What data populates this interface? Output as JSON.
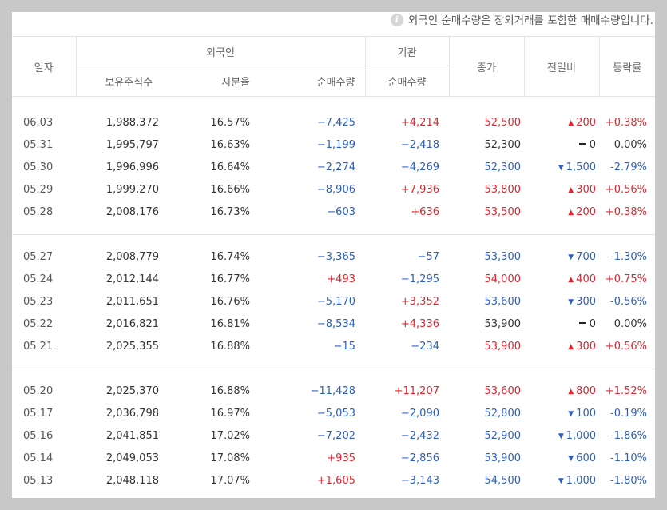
{
  "notice": "외국인 순매수량은 장외거래를 포함한 매매수량입니다.",
  "icons": {
    "info": "info-icon",
    "up": "triangle-up-icon",
    "down": "triangle-down-icon",
    "flat": "dash-icon"
  },
  "colors": {
    "up": "#e0252f",
    "down": "#2d5fc1",
    "flat": "#333333"
  },
  "headers": {
    "date": "일자",
    "foreign": "외국인",
    "foreign_holdings": "보유주식수",
    "foreign_ratio": "지분율",
    "foreign_net": "순매수량",
    "institution": "기관",
    "institution_net": "순매수량",
    "close": "종가",
    "change": "전일비",
    "rate": "등락률"
  },
  "groups": [
    [
      {
        "date": "06.03",
        "holdings": "1,988,372",
        "ratio": "16.57%",
        "fnet": "−7,425",
        "fnet_dir": "down",
        "inet": "+4,214",
        "inet_dir": "up",
        "close": "52,500",
        "dir": "up",
        "change": "200",
        "rate": "+0.38%"
      },
      {
        "date": "05.31",
        "holdings": "1,995,797",
        "ratio": "16.63%",
        "fnet": "−1,199",
        "fnet_dir": "down",
        "inet": "−2,418",
        "inet_dir": "down",
        "close": "52,300",
        "dir": "flat",
        "change": "0",
        "rate": "0.00%"
      },
      {
        "date": "05.30",
        "holdings": "1,996,996",
        "ratio": "16.64%",
        "fnet": "−2,274",
        "fnet_dir": "down",
        "inet": "−4,269",
        "inet_dir": "down",
        "close": "52,300",
        "dir": "down",
        "change": "1,500",
        "rate": "-2.79%"
      },
      {
        "date": "05.29",
        "holdings": "1,999,270",
        "ratio": "16.66%",
        "fnet": "−8,906",
        "fnet_dir": "down",
        "inet": "+7,936",
        "inet_dir": "up",
        "close": "53,800",
        "dir": "up",
        "change": "300",
        "rate": "+0.56%"
      },
      {
        "date": "05.28",
        "holdings": "2,008,176",
        "ratio": "16.73%",
        "fnet": "−603",
        "fnet_dir": "down",
        "inet": "+636",
        "inet_dir": "up",
        "close": "53,500",
        "dir": "up",
        "change": "200",
        "rate": "+0.38%"
      }
    ],
    [
      {
        "date": "05.27",
        "holdings": "2,008,779",
        "ratio": "16.74%",
        "fnet": "−3,365",
        "fnet_dir": "down",
        "inet": "−57",
        "inet_dir": "down",
        "close": "53,300",
        "dir": "down",
        "change": "700",
        "rate": "-1.30%"
      },
      {
        "date": "05.24",
        "holdings": "2,012,144",
        "ratio": "16.77%",
        "fnet": "+493",
        "fnet_dir": "up",
        "inet": "−1,295",
        "inet_dir": "down",
        "close": "54,000",
        "dir": "up",
        "change": "400",
        "rate": "+0.75%"
      },
      {
        "date": "05.23",
        "holdings": "2,011,651",
        "ratio": "16.76%",
        "fnet": "−5,170",
        "fnet_dir": "down",
        "inet": "+3,352",
        "inet_dir": "up",
        "close": "53,600",
        "dir": "down",
        "change": "300",
        "rate": "-0.56%"
      },
      {
        "date": "05.22",
        "holdings": "2,016,821",
        "ratio": "16.81%",
        "fnet": "−8,534",
        "fnet_dir": "down",
        "inet": "+4,336",
        "inet_dir": "up",
        "close": "53,900",
        "dir": "flat",
        "change": "0",
        "rate": "0.00%"
      },
      {
        "date": "05.21",
        "holdings": "2,025,355",
        "ratio": "16.88%",
        "fnet": "−15",
        "fnet_dir": "down",
        "inet": "−234",
        "inet_dir": "down",
        "close": "53,900",
        "dir": "up",
        "change": "300",
        "rate": "+0.56%"
      }
    ],
    [
      {
        "date": "05.20",
        "holdings": "2,025,370",
        "ratio": "16.88%",
        "fnet": "−11,428",
        "fnet_dir": "down",
        "inet": "+11,207",
        "inet_dir": "up",
        "close": "53,600",
        "dir": "up",
        "change": "800",
        "rate": "+1.52%"
      },
      {
        "date": "05.17",
        "holdings": "2,036,798",
        "ratio": "16.97%",
        "fnet": "−5,053",
        "fnet_dir": "down",
        "inet": "−2,090",
        "inet_dir": "down",
        "close": "52,800",
        "dir": "down",
        "change": "100",
        "rate": "-0.19%"
      },
      {
        "date": "05.16",
        "holdings": "2,041,851",
        "ratio": "17.02%",
        "fnet": "−7,202",
        "fnet_dir": "down",
        "inet": "−2,432",
        "inet_dir": "down",
        "close": "52,900",
        "dir": "down",
        "change": "1,000",
        "rate": "-1.86%"
      },
      {
        "date": "05.14",
        "holdings": "2,049,053",
        "ratio": "17.08%",
        "fnet": "+935",
        "fnet_dir": "up",
        "inet": "−2,856",
        "inet_dir": "down",
        "close": "53,900",
        "dir": "down",
        "change": "600",
        "rate": "-1.10%"
      },
      {
        "date": "05.13",
        "holdings": "2,048,118",
        "ratio": "17.07%",
        "fnet": "+1,605",
        "fnet_dir": "up",
        "inet": "−3,143",
        "inet_dir": "down",
        "close": "54,500",
        "dir": "down",
        "change": "1,000",
        "rate": "-1.80%"
      }
    ]
  ]
}
